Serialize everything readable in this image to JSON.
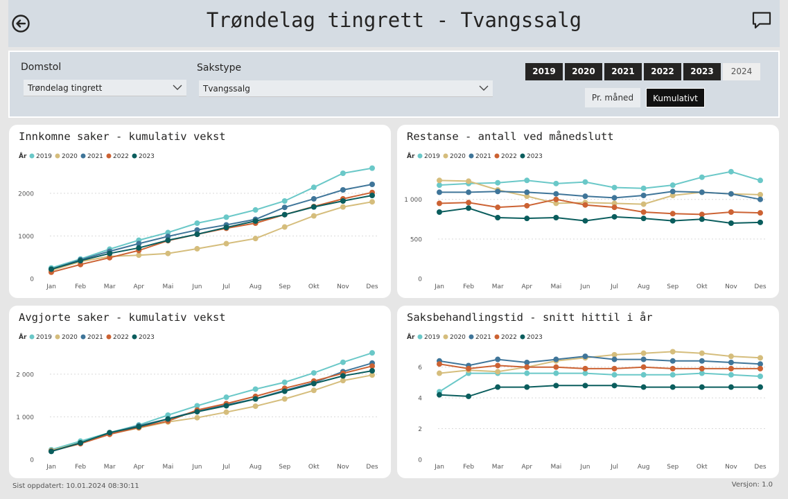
{
  "header": {
    "title": "Trøndelag tingrett - Tvangssalg"
  },
  "filters": {
    "court": {
      "label": "Domstol",
      "value": "Trøndelag tingrett"
    },
    "case_type": {
      "label": "Sakstype",
      "value": "Tvangssalg"
    },
    "years": [
      {
        "label": "2019",
        "selected": true
      },
      {
        "label": "2020",
        "selected": true
      },
      {
        "label": "2021",
        "selected": true
      },
      {
        "label": "2022",
        "selected": true
      },
      {
        "label": "2023",
        "selected": true
      },
      {
        "label": "2024",
        "selected": false
      }
    ],
    "mode_monthly": "Pr. måned",
    "mode_cumulative": "Kumulativt",
    "mode_selected": "Kumulativt"
  },
  "footer": {
    "updated": "Sist oppdatert: 10.01.2024 08:30:11",
    "version": "Versjon: 1.0"
  },
  "colors": {
    "2019": "#6ac8c8",
    "2020": "#d5bd7c",
    "2021": "#3f7599",
    "2022": "#cc6233",
    "2023": "#0a5d5d"
  },
  "chart_data": [
    {
      "id": "innkomne",
      "type": "line",
      "title": "Innkomne saker - kumulativ vekst",
      "legend_title": "År",
      "legend_position": "top-left",
      "categories": [
        "Jan",
        "Feb",
        "Mar",
        "Apr",
        "Mai",
        "Jun",
        "Jul",
        "Aug",
        "Sep",
        "Okt",
        "Nov",
        "Des"
      ],
      "ylim": [
        0,
        2600
      ],
      "yticks": [
        0,
        1000,
        2000
      ],
      "ytick_labels": [
        "0",
        "1000",
        "2000"
      ],
      "grid": true,
      "series": [
        {
          "name": "2019",
          "values": [
            250,
            460,
            690,
            900,
            1080,
            1300,
            1440,
            1610,
            1820,
            2140,
            2470,
            2590
          ]
        },
        {
          "name": "2020",
          "values": [
            190,
            400,
            520,
            550,
            590,
            700,
            820,
            940,
            1210,
            1470,
            1680,
            1800
          ]
        },
        {
          "name": "2021",
          "values": [
            220,
            440,
            640,
            820,
            990,
            1140,
            1260,
            1390,
            1670,
            1870,
            2080,
            2210
          ]
        },
        {
          "name": "2022",
          "values": [
            150,
            330,
            490,
            660,
            890,
            1040,
            1180,
            1300,
            1500,
            1690,
            1870,
            2020
          ]
        },
        {
          "name": "2023",
          "values": [
            220,
            420,
            590,
            720,
            900,
            1040,
            1200,
            1350,
            1500,
            1680,
            1820,
            1950
          ]
        }
      ]
    },
    {
      "id": "restanse",
      "type": "line",
      "title": "Restanse - antall ved månedslutt",
      "legend_title": "År",
      "legend_position": "top-left",
      "categories": [
        "Jan",
        "Feb",
        "Mar",
        "Apr",
        "Mai",
        "Jun",
        "Jul",
        "Aug",
        "Sep",
        "Okt",
        "Nov",
        "Des"
      ],
      "ylim": [
        0,
        1400
      ],
      "yticks": [
        0,
        500,
        1000
      ],
      "ytick_labels": [
        "0",
        "500",
        "1 000"
      ],
      "grid": true,
      "series": [
        {
          "name": "2019",
          "values": [
            1180,
            1200,
            1210,
            1240,
            1200,
            1220,
            1150,
            1140,
            1180,
            1280,
            1350,
            1240
          ]
        },
        {
          "name": "2020",
          "values": [
            1240,
            1230,
            1120,
            1040,
            950,
            960,
            950,
            940,
            1050,
            1090,
            1070,
            1060
          ]
        },
        {
          "name": "2021",
          "values": [
            1090,
            1090,
            1100,
            1090,
            1070,
            1040,
            1020,
            1050,
            1100,
            1090,
            1070,
            1000
          ]
        },
        {
          "name": "2022",
          "values": [
            950,
            960,
            900,
            920,
            1000,
            930,
            900,
            840,
            820,
            810,
            840,
            830
          ]
        },
        {
          "name": "2023",
          "values": [
            840,
            890,
            770,
            760,
            770,
            730,
            780,
            760,
            730,
            750,
            700,
            710
          ]
        }
      ]
    },
    {
      "id": "avgjorte",
      "type": "line",
      "title": "Avgjorte saker - kumulativ vekst",
      "legend_title": "År",
      "legend_position": "top-left",
      "categories": [
        "Jan",
        "Feb",
        "Mar",
        "Apr",
        "Mai",
        "Jun",
        "Jul",
        "Aug",
        "Sep",
        "Okt",
        "Nov",
        "Des"
      ],
      "ylim": [
        0,
        2600
      ],
      "yticks": [
        0,
        1000,
        2000
      ],
      "ytick_labels": [
        "0",
        "1 000",
        "2 000"
      ],
      "grid": true,
      "series": [
        {
          "name": "2019",
          "values": [
            230,
            430,
            630,
            810,
            1040,
            1260,
            1460,
            1650,
            1810,
            2030,
            2280,
            2500
          ]
        },
        {
          "name": "2020",
          "values": [
            210,
            390,
            600,
            740,
            880,
            980,
            1110,
            1250,
            1420,
            1620,
            1850,
            1980
          ]
        },
        {
          "name": "2021",
          "values": [
            190,
            380,
            620,
            790,
            950,
            1140,
            1280,
            1420,
            1620,
            1800,
            2060,
            2260
          ]
        },
        {
          "name": "2022",
          "values": [
            200,
            370,
            590,
            750,
            900,
            1160,
            1310,
            1480,
            1670,
            1840,
            2020,
            2190
          ]
        },
        {
          "name": "2023",
          "values": [
            190,
            390,
            630,
            770,
            950,
            1120,
            1260,
            1420,
            1600,
            1780,
            1960,
            2080
          ]
        }
      ]
    },
    {
      "id": "saksbehandlingstid",
      "type": "line",
      "title": "Saksbehandlingstid - snitt hittil i år",
      "legend_title": "År",
      "legend_position": "top-left",
      "categories": [
        "Jan",
        "Feb",
        "Mar",
        "Apr",
        "Mai",
        "Jun",
        "Jul",
        "Aug",
        "Sep",
        "Okt",
        "Nov",
        "Des"
      ],
      "ylim": [
        0,
        7.2
      ],
      "yticks": [
        0,
        2,
        4,
        6
      ],
      "ytick_labels": [
        "0",
        "2",
        "4",
        "6"
      ],
      "grid": true,
      "series": [
        {
          "name": "2019",
          "values": [
            4.4,
            5.6,
            5.6,
            5.6,
            5.6,
            5.6,
            5.5,
            5.5,
            5.5,
            5.6,
            5.5,
            5.4
          ]
        },
        {
          "name": "2020",
          "values": [
            5.6,
            5.8,
            5.7,
            6.0,
            6.4,
            6.6,
            6.8,
            6.9,
            7.0,
            6.9,
            6.7,
            6.6
          ]
        },
        {
          "name": "2021",
          "values": [
            6.4,
            6.1,
            6.5,
            6.3,
            6.5,
            6.7,
            6.5,
            6.5,
            6.4,
            6.4,
            6.3,
            6.2
          ]
        },
        {
          "name": "2022",
          "values": [
            6.2,
            5.9,
            6.1,
            6.0,
            6.0,
            5.9,
            5.9,
            6.0,
            5.9,
            5.9,
            5.9,
            5.9
          ]
        },
        {
          "name": "2023",
          "values": [
            4.2,
            4.1,
            4.7,
            4.7,
            4.8,
            4.8,
            4.8,
            4.7,
            4.7,
            4.7,
            4.7,
            4.7
          ]
        }
      ]
    }
  ]
}
